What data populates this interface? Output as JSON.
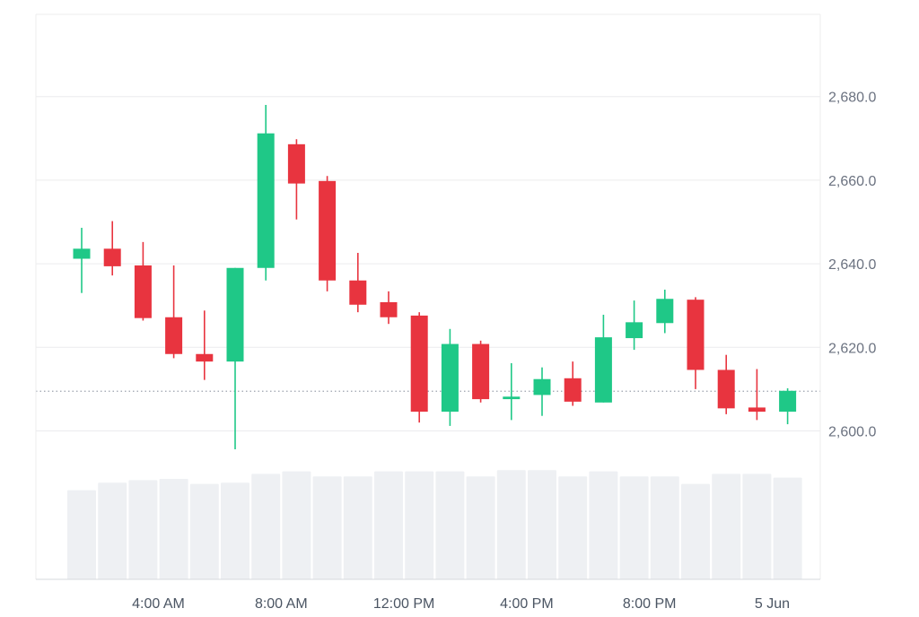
{
  "chart_data": {
    "type": "candlestick",
    "y_ticks": [
      "2,600.0",
      "2,620.0",
      "2,640.0",
      "2,660.0",
      "2,680.0"
    ],
    "y_tick_values": [
      2600,
      2620,
      2640,
      2660,
      2680
    ],
    "x_ticks": [
      {
        "label": "4:00 AM",
        "candle_index": 2.5
      },
      {
        "label": "8:00 AM",
        "candle_index": 6.5
      },
      {
        "label": "12:00 PM",
        "candle_index": 10.5
      },
      {
        "label": "4:00 PM",
        "candle_index": 14.5
      },
      {
        "label": "8:00 PM",
        "candle_index": 18.5
      },
      {
        "label": "5 Jun",
        "candle_index": 22.5
      }
    ],
    "reference_price": 2609.5,
    "colors": {
      "up": "#1fc887",
      "down": "#e8343f",
      "volume": "#eef0f3",
      "grid": "#ececee",
      "reference": "#9ca3af"
    },
    "candles": [
      {
        "o": 2641.2,
        "h": 2648.6,
        "l": 2633.0,
        "c": 2643.6,
        "v": 0.71
      },
      {
        "o": 2643.6,
        "h": 2650.2,
        "l": 2637.2,
        "c": 2639.4,
        "v": 0.77
      },
      {
        "o": 2639.6,
        "h": 2645.2,
        "l": 2626.4,
        "c": 2627.0,
        "v": 0.79
      },
      {
        "o": 2627.2,
        "h": 2639.6,
        "l": 2617.4,
        "c": 2618.4,
        "v": 0.8
      },
      {
        "o": 2618.4,
        "h": 2628.8,
        "l": 2612.2,
        "c": 2616.6,
        "v": 0.76
      },
      {
        "o": 2616.6,
        "h": 2639.0,
        "l": 2595.6,
        "c": 2639.0,
        "v": 0.77
      },
      {
        "o": 2639.0,
        "h": 2678.0,
        "l": 2636.0,
        "c": 2671.2,
        "v": 0.84
      },
      {
        "o": 2668.6,
        "h": 2669.8,
        "l": 2650.6,
        "c": 2659.2,
        "v": 0.86
      },
      {
        "o": 2659.8,
        "h": 2661.0,
        "l": 2633.4,
        "c": 2636.0,
        "v": 0.82
      },
      {
        "o": 2636.0,
        "h": 2642.6,
        "l": 2628.4,
        "c": 2630.2,
        "v": 0.82
      },
      {
        "o": 2630.8,
        "h": 2633.4,
        "l": 2625.6,
        "c": 2627.2,
        "v": 0.86
      },
      {
        "o": 2627.6,
        "h": 2628.4,
        "l": 2602.0,
        "c": 2604.6,
        "v": 0.86
      },
      {
        "o": 2604.6,
        "h": 2624.4,
        "l": 2601.2,
        "c": 2620.8,
        "v": 0.86
      },
      {
        "o": 2620.8,
        "h": 2621.6,
        "l": 2606.8,
        "c": 2607.6,
        "v": 0.82
      },
      {
        "o": 2607.6,
        "h": 2616.2,
        "l": 2602.6,
        "c": 2608.2,
        "v": 0.87
      },
      {
        "o": 2608.6,
        "h": 2615.2,
        "l": 2603.6,
        "c": 2612.4,
        "v": 0.87
      },
      {
        "o": 2612.6,
        "h": 2616.6,
        "l": 2606.0,
        "c": 2607.0,
        "v": 0.82
      },
      {
        "o": 2606.8,
        "h": 2627.8,
        "l": 2606.8,
        "c": 2622.4,
        "v": 0.86
      },
      {
        "o": 2622.2,
        "h": 2631.2,
        "l": 2619.4,
        "c": 2626.0,
        "v": 0.82
      },
      {
        "o": 2625.8,
        "h": 2633.8,
        "l": 2623.4,
        "c": 2631.6,
        "v": 0.82
      },
      {
        "o": 2631.4,
        "h": 2632.0,
        "l": 2610.0,
        "c": 2614.6,
        "v": 0.76
      },
      {
        "o": 2614.6,
        "h": 2618.2,
        "l": 2604.0,
        "c": 2605.4,
        "v": 0.84
      },
      {
        "o": 2605.6,
        "h": 2614.8,
        "l": 2602.6,
        "c": 2604.6,
        "v": 0.84
      },
      {
        "o": 2604.6,
        "h": 2610.2,
        "l": 2601.6,
        "c": 2609.6,
        "v": 0.81
      }
    ]
  }
}
